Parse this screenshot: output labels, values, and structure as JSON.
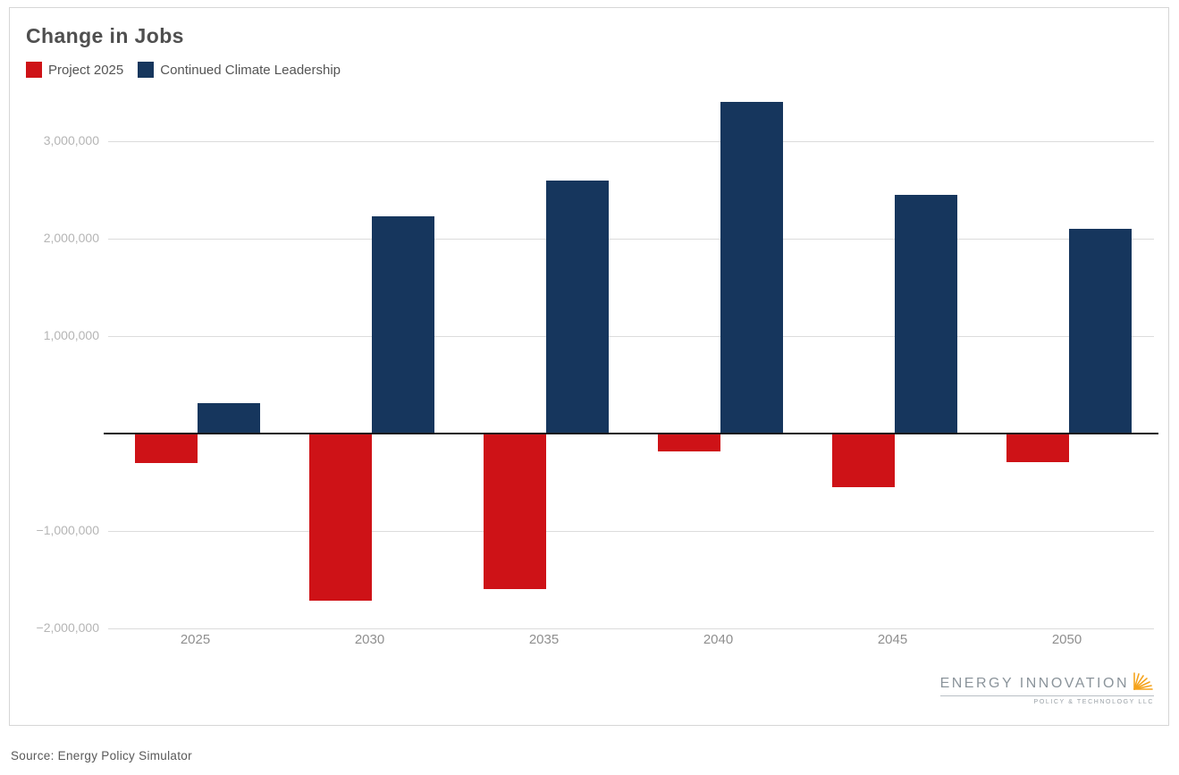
{
  "title": "Change in Jobs",
  "source": "Source: Energy Policy Simulator",
  "logo": {
    "wordmark": "ENERGY INNOVATION",
    "subtitle": "POLICY & TECHNOLOGY LLC",
    "burst_color": "#F5A31C",
    "icon": "sunburst-icon"
  },
  "colors": {
    "project_2025": "#CE1217",
    "continued_climate_leadership": "#16365D",
    "gridline": "#dcdcdc",
    "zero_axis": "#1a1a1a",
    "ytick_text": "#b5b5b5",
    "xtick_text": "#8f8f8f"
  },
  "chart_data": {
    "type": "bar",
    "title": "Change in Jobs",
    "categories": [
      "2025",
      "2030",
      "2035",
      "2040",
      "2045",
      "2050"
    ],
    "series": [
      {
        "name": "Project 2025",
        "color": "#CE1217",
        "values": [
          -300000,
          -1720000,
          -1600000,
          -180000,
          -550000,
          -290000
        ]
      },
      {
        "name": "Continued Climate Leadership",
        "color": "#16365D",
        "values": [
          310000,
          2230000,
          2600000,
          3400000,
          2450000,
          2100000
        ]
      }
    ],
    "ylim": [
      -2000000,
      3000000
    ],
    "ytick_interval": 1000000,
    "ytick_labels": [
      "−2,000,000",
      "−1,000,000",
      "1,000,000",
      "2,000,000",
      "3,000,000"
    ],
    "grid": true,
    "legend_position": "top-left",
    "source": "Source: Energy Policy Simulator"
  }
}
